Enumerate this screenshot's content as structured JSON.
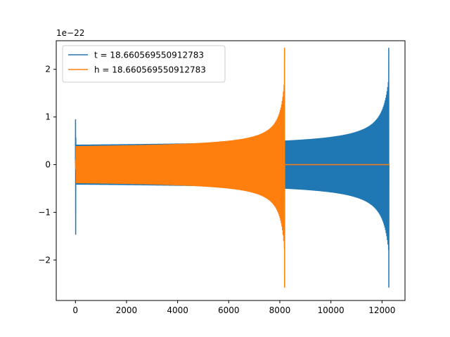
{
  "chart_data": {
    "type": "line",
    "title": "",
    "xlabel": "",
    "ylabel": "",
    "y_scale_label": "1e−22",
    "xlim": [
      -750,
      12900
    ],
    "ylim": [
      -2.85,
      2.6
    ],
    "x_ticks": [
      0,
      2000,
      4000,
      6000,
      8000,
      10000,
      12000
    ],
    "x_tick_labels": [
      "0",
      "2000",
      "4000",
      "6000",
      "8000",
      "10000",
      "12000"
    ],
    "y_ticks": [
      -2,
      -1,
      0,
      1,
      2
    ],
    "y_tick_labels": [
      "−2",
      "−1",
      "0",
      "1",
      "2"
    ],
    "grid": false,
    "legend_position": "top-left",
    "series": [
      {
        "name": "t = 18.660569550912783",
        "color": "#1f77b4",
        "x_start": 0,
        "x_end": 12270,
        "start_spike_max": 0.95,
        "start_spike_min": -1.47,
        "plateau_amplitude": 0.42,
        "peak_max": 2.45,
        "peak_min": -2.58,
        "trailing_zero": false
      },
      {
        "name": "h = 18.660569550912783",
        "color": "#ff7f0e",
        "x_start": 0,
        "x_end": 12270,
        "start_spike_max": 0.1,
        "start_spike_min": -0.1,
        "plateau_amplitude": 0.39,
        "peak_x": 8190,
        "peak_max": 2.45,
        "peak_min": -2.58,
        "trailing_zero": true
      }
    ]
  }
}
